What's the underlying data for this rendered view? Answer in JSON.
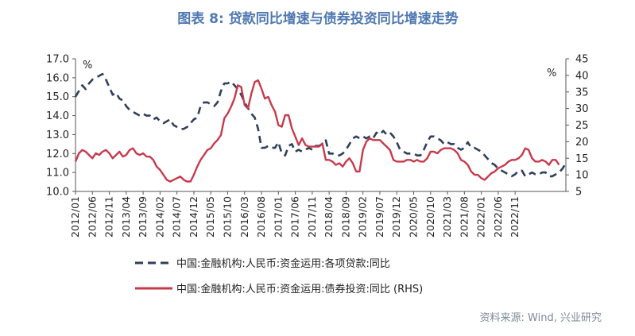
{
  "title": "图表 8:  贷款同比增速与债券投资同比增速走势",
  "source": "资料来源:  Wind, 兴业研究",
  "left_unit": "%",
  "right_unit": "%",
  "colors": {
    "title": "#4f78b2",
    "loans": "#2f3f5c",
    "bonds": "#c73a4d",
    "axis": "#555555",
    "source": "#7f8a9a"
  },
  "chart_data": {
    "type": "line",
    "title": "图表 8:  贷款同比增速与债券投资同比增速走势",
    "x_start": "2012/01",
    "x_end": "2023/02",
    "x_ticks": [
      "2012/01",
      "2012/06",
      "2012/11",
      "2013/04",
      "2013/09",
      "2014/02",
      "2014/07",
      "2014/12",
      "2015/05",
      "2015/10",
      "2016/03",
      "2016/08",
      "2017/01",
      "2017/06",
      "2017/11",
      "2018/04",
      "2018/09",
      "2019/02",
      "2019/07",
      "2019/12",
      "2020/05",
      "2020/10",
      "2021/03",
      "2021/08",
      "2022/01",
      "2022/06",
      "2022/11"
    ],
    "y_left": {
      "min": 10,
      "max": 17,
      "step": 1,
      "tick_labels": [
        "10.0",
        "11.0",
        "12.0",
        "13.0",
        "14.0",
        "15.0",
        "16.0",
        "17.0"
      ]
    },
    "y_right": {
      "min": 5,
      "max": 45,
      "step": 5,
      "tick_labels": [
        "5",
        "10",
        "15",
        "20",
        "25",
        "30",
        "35",
        "40",
        "45"
      ]
    },
    "legend_position": "bottom",
    "grid": false,
    "series": [
      {
        "name": "中国:金融机构:人民币:资金运用:各项贷款:同比",
        "axis": "left",
        "style": "dashed",
        "color": "#2f3f5c",
        "values": [
          15.0,
          15.3,
          15.6,
          15.4,
          15.7,
          15.9,
          16.0,
          16.1,
          16.2,
          15.9,
          15.5,
          15.1,
          15.2,
          14.9,
          14.8,
          14.5,
          14.3,
          14.2,
          14.1,
          14.0,
          14.1,
          14.0,
          14.0,
          13.8,
          13.9,
          13.7,
          13.6,
          13.7,
          13.8,
          13.5,
          13.4,
          13.3,
          13.3,
          13.4,
          13.6,
          13.8,
          13.9,
          14.5,
          14.7,
          14.7,
          14.6,
          14.5,
          14.7,
          15.3,
          15.7,
          15.7,
          15.8,
          15.6,
          15.4,
          15.1,
          14.7,
          14.4,
          14.1,
          13.9,
          13.3,
          12.3,
          12.3,
          12.4,
          12.3,
          12.3,
          12.6,
          12.0,
          11.9,
          12.4,
          12.5,
          12.1,
          12.2,
          12.1,
          12.2,
          12.3,
          12.2,
          12.4,
          12.4,
          12.5,
          12.7,
          12.0,
          12.0,
          11.9,
          11.9,
          12.0,
          12.2,
          12.5,
          12.8,
          12.9,
          12.8,
          12.9,
          12.8,
          12.9,
          12.8,
          13.1,
          13.0,
          13.2,
          13.0,
          13.1,
          12.9,
          12.6,
          12.2,
          12.1,
          12.0,
          12.0,
          12.0,
          11.9,
          11.9,
          12.2,
          12.6,
          12.9,
          12.9,
          12.8,
          12.7,
          12.5,
          12.6,
          12.5,
          12.5,
          12.3,
          12.2,
          12.3,
          12.6,
          12.3,
          12.3,
          12.2,
          12.1,
          11.9,
          11.7,
          11.5,
          11.4,
          11.2,
          11.1,
          11.0,
          10.9,
          10.8,
          10.9,
          11.1,
          11.1,
          10.8,
          10.9,
          11.0,
          10.9,
          10.9,
          11.0,
          11.0,
          10.8,
          10.8,
          10.9,
          11.0,
          11.2,
          11.5
        ]
      },
      {
        "name": "中国:金融机构:人民币:资金运用:债券投资:同比 (RHS)",
        "axis": "right",
        "style": "solid",
        "color": "#c73a4d",
        "values": [
          14.0,
          16.5,
          17.5,
          17.0,
          16.0,
          15.0,
          16.5,
          16.0,
          17.0,
          17.5,
          16.5,
          15.0,
          16.0,
          17.0,
          15.5,
          16.0,
          17.5,
          18.0,
          16.5,
          16.0,
          16.5,
          15.5,
          15.5,
          14.5,
          12.5,
          11.5,
          10.0,
          8.5,
          8.0,
          8.5,
          9.0,
          9.5,
          8.5,
          8.0,
          8.0,
          10.0,
          12.5,
          14.5,
          16.0,
          17.5,
          18.0,
          19.5,
          20.5,
          22.0,
          27.0,
          28.5,
          30.5,
          33.0,
          37.0,
          36.5,
          31.0,
          30.0,
          34.5,
          38.0,
          38.5,
          36.0,
          33.0,
          33.5,
          31.0,
          29.0,
          25.0,
          24.5,
          28.0,
          28.0,
          24.0,
          21.5,
          19.0,
          21.0,
          19.0,
          18.5,
          18.5,
          18.5,
          18.5,
          19.5,
          14.5,
          14.5,
          14.0,
          13.0,
          13.5,
          12.5,
          14.0,
          15.0,
          13.5,
          11.0,
          11.0,
          17.5,
          20.0,
          21.0,
          20.5,
          20.5,
          20.5,
          19.5,
          18.5,
          17.5,
          14.5,
          14.0,
          14.0,
          14.0,
          14.5,
          14.5,
          14.0,
          14.5,
          14.0,
          14.0,
          15.0,
          17.0,
          17.0,
          16.5,
          17.5,
          18.0,
          18.0,
          18.0,
          17.5,
          16.5,
          14.5,
          14.0,
          13.0,
          11.0,
          10.0,
          10.0,
          9.0,
          8.5,
          9.5,
          10.5,
          11.0,
          12.0,
          12.5,
          13.0,
          14.0,
          14.5,
          14.5,
          15.0,
          16.0,
          18.0,
          17.5,
          15.0,
          14.0,
          14.0,
          14.5,
          14.0,
          13.0,
          14.5,
          14.5,
          13.0
        ]
      }
    ]
  }
}
